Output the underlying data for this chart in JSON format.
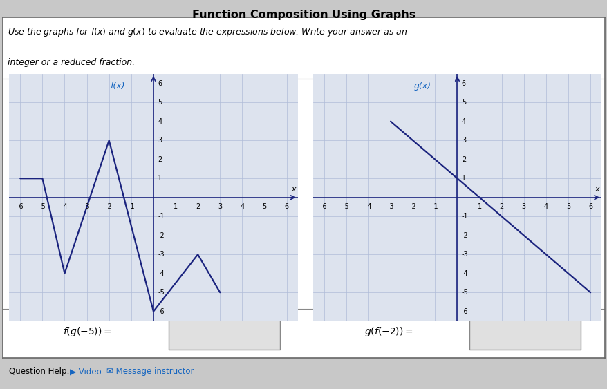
{
  "title": "Function Composition Using Graphs",
  "subtitle_line1": "Use the graphs for f(x) and g(x) to evaluate the expressions below. Write your answer as an",
  "subtitle_line2": "integer or a reduced fraction.",
  "f_points": [
    [
      -6,
      1
    ],
    [
      -5,
      1
    ],
    [
      -4,
      -4
    ],
    [
      -2,
      3
    ],
    [
      0,
      -6
    ],
    [
      2,
      -3
    ],
    [
      3,
      -5
    ]
  ],
  "g_points": [
    [
      -3,
      4
    ],
    [
      6,
      -5
    ]
  ],
  "f_label": "f(x)",
  "g_label": "g(x)",
  "expr1": "f(g(− 5)) =",
  "expr2": "g(f(− 2)) =",
  "graph_color": "#1a237e",
  "label_color": "#1565C0",
  "axis_color": "#1a237e",
  "grid_color": "#b0bcd8",
  "bg_color": "#c8c8c8",
  "plot_bg": "#dde3ee",
  "xlim": [
    -6.5,
    6.5
  ],
  "ylim": [
    -6.5,
    6.5
  ],
  "answer_box_color": "#e0e0e0",
  "title_color": "#000000",
  "subtitle_color": "#000000",
  "tick_vals": [
    -6,
    -5,
    -4,
    -3,
    -2,
    -1,
    1,
    2,
    3,
    4,
    5,
    6
  ],
  "help_text_color": "#000000",
  "link_color": "#1565C0",
  "white": "#ffffff",
  "outer_border_color": "#888888"
}
